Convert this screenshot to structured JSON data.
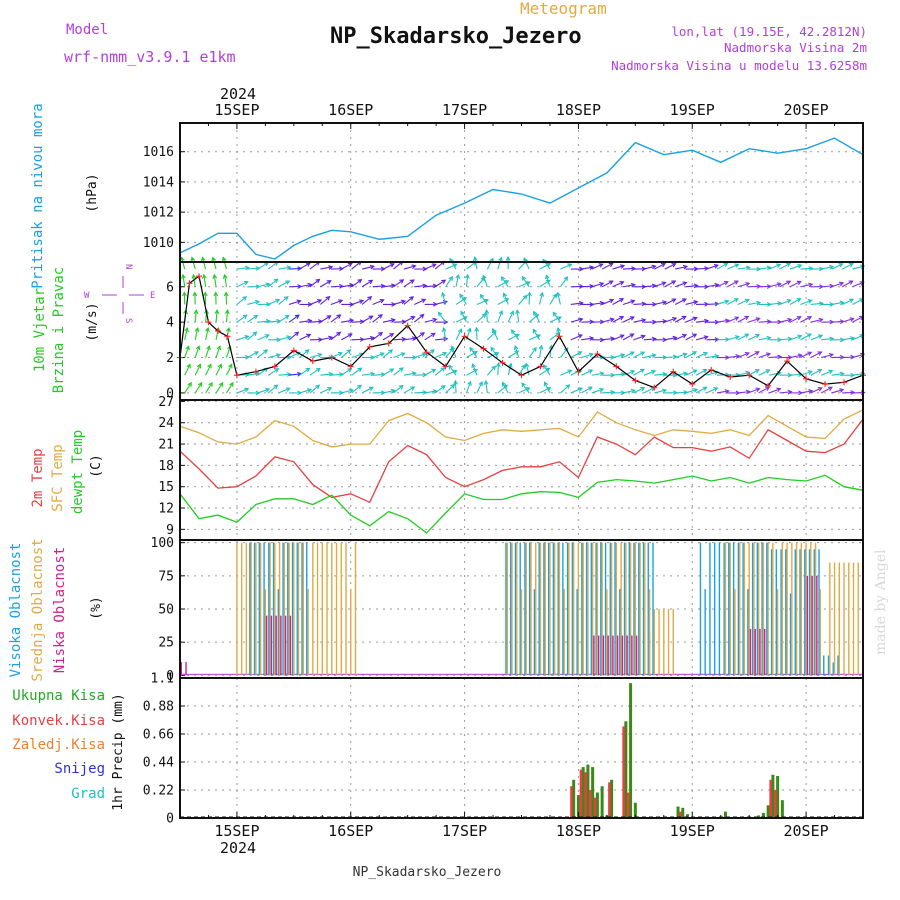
{
  "header": {
    "model_label": "Model",
    "model_value": "wrf-nmm_v3.9.1 e1km",
    "meteogram_label": "Meteogram",
    "station_title": "NP_Skadarsko_Jezero",
    "lonlat": "lon,lat (19.15E, 42.2812N)",
    "height_line1": "Nadmorska Visina 2m",
    "height_line2": "Nadmorska Visina u modelu 13.6258m",
    "footer_station": "NP_Skadarsko_Jezero",
    "credit": "made by Angel",
    "year_top": "2024",
    "year_bottom": "2024"
  },
  "days": [
    "15SEP",
    "16SEP",
    "17SEP",
    "18SEP",
    "19SEP",
    "20SEP"
  ],
  "colors": {
    "pressure": "#1aa0e6",
    "t2m": "#e84040",
    "sfc": "#e0aa44",
    "dewpt": "#22cc22",
    "purple": "#b040d8",
    "high_cloud": "#1aa0e6",
    "mid_cloud": "#e0aa44",
    "low_cloud": "#d02090",
    "total_rain": "#22aa22",
    "conv_rain": "#e84040",
    "frozen": "#f08030",
    "snow": "#3030e0",
    "hail": "#20c0c0",
    "wind_line": "#000000",
    "wind_cross": "#ff2020"
  },
  "panels": {
    "pressure": {
      "label1": "Pritisak na nivou mora",
      "unit": "(hPa)"
    },
    "wind": {
      "label1": "10m Vjetar",
      "label2": "Brzina i Pravac",
      "unit": "(m/s)",
      "compass_n": "N",
      "compass_s": "S",
      "compass_w": "W",
      "compass_e": "E"
    },
    "temp": {
      "label1": "2m Temp",
      "label2": "SFC Temp",
      "label3": "dewpt Temp",
      "unit": "(C)"
    },
    "cloud": {
      "label1": "Visoka Oblacnost",
      "label2": "Srednja Oblacnost",
      "label3": "Niska Oblacnost",
      "unit": "(%)"
    },
    "precip": {
      "unit": "1hr Precip (mm)",
      "legend": [
        "Ukupna Kisa",
        "Konvek.Kisa",
        "Zaledj.Kisa",
        "Snijeg",
        "Grad"
      ]
    }
  },
  "chart_data": [
    {
      "type": "line",
      "panel": "pressure",
      "ylabel": "(hPa)",
      "ylim": [
        1008.7,
        1017.9
      ],
      "yticks": [
        1010,
        1012,
        1014,
        1016
      ],
      "x_unit": "hours from 2024-09-15 00 UTC",
      "xlim": [
        -12,
        132
      ],
      "x": [
        -12,
        -8,
        -4,
        0,
        4,
        8,
        12,
        16,
        20,
        24,
        30,
        36,
        42,
        48,
        54,
        60,
        66,
        72,
        78,
        84,
        90,
        96,
        102,
        108,
        114,
        120,
        126,
        132
      ],
      "values": [
        1009.3,
        1009.9,
        1010.6,
        1010.6,
        1009.2,
        1008.9,
        1009.8,
        1010.4,
        1010.8,
        1010.7,
        1010.2,
        1010.4,
        1011.8,
        1012.6,
        1013.5,
        1013.2,
        1012.6,
        1013.6,
        1014.6,
        1016.6,
        1015.8,
        1016.1,
        1015.3,
        1016.2,
        1015.9,
        1016.2,
        1016.9,
        1015.8
      ]
    },
    {
      "type": "line",
      "panel": "wind",
      "ylabel": "(m/s)",
      "ylim": [
        -0.4,
        7.4
      ],
      "yticks": [
        0,
        2,
        4,
        6
      ],
      "xlim": [
        -12,
        132
      ],
      "x": [
        -12,
        -10,
        -8,
        -6,
        -4,
        -2,
        0,
        4,
        8,
        12,
        16,
        20,
        24,
        28,
        32,
        36,
        40,
        44,
        48,
        52,
        56,
        60,
        64,
        68,
        72,
        76,
        80,
        84,
        88,
        92,
        96,
        100,
        104,
        108,
        112,
        116,
        120,
        124,
        128,
        132
      ],
      "values": [
        2.0,
        6.2,
        6.6,
        4.0,
        3.5,
        3.2,
        1.0,
        1.2,
        1.5,
        2.4,
        1.8,
        2.0,
        1.5,
        2.6,
        2.8,
        3.8,
        2.3,
        1.5,
        3.2,
        2.5,
        1.7,
        1.0,
        1.5,
        3.2,
        1.2,
        2.2,
        1.5,
        0.7,
        0.3,
        1.2,
        0.5,
        1.3,
        0.9,
        1.0,
        0.4,
        1.8,
        0.8,
        0.5,
        0.6,
        1.0
      ]
    },
    {
      "type": "line",
      "panel": "temp",
      "ylabel": "(C)",
      "ylim": [
        7.5,
        27.2
      ],
      "yticks": [
        9,
        12,
        15,
        18,
        21,
        24,
        27
      ],
      "xlim": [
        -12,
        132
      ],
      "x": [
        -12,
        -8,
        -4,
        0,
        4,
        8,
        12,
        16,
        20,
        24,
        28,
        32,
        36,
        40,
        44,
        48,
        52,
        56,
        60,
        64,
        68,
        72,
        76,
        80,
        84,
        88,
        92,
        96,
        100,
        104,
        108,
        112,
        116,
        120,
        124,
        128,
        132
      ],
      "series": [
        {
          "name": "2m Temp",
          "color": "#e84040",
          "values": [
            20.0,
            17.5,
            14.8,
            15.0,
            16.5,
            19.2,
            18.5,
            15.3,
            13.5,
            14.0,
            12.8,
            18.5,
            20.8,
            19.5,
            16.3,
            15.0,
            16.0,
            17.3,
            17.8,
            17.8,
            18.5,
            16.3,
            22.0,
            21.0,
            19.5,
            22.0,
            20.5,
            20.5,
            20.0,
            20.6,
            19.0,
            23.0,
            21.5,
            20.0,
            19.8,
            21.0,
            24.5
          ]
        },
        {
          "name": "SFC Temp",
          "color": "#e0aa44",
          "values": [
            23.5,
            22.6,
            21.3,
            21.0,
            22.0,
            24.3,
            23.5,
            21.5,
            20.6,
            21.0,
            21.0,
            24.3,
            25.3,
            24.0,
            22.0,
            21.5,
            22.5,
            23.0,
            22.8,
            23.0,
            23.2,
            22.0,
            25.5,
            24.0,
            23.0,
            22.2,
            23.0,
            22.8,
            22.5,
            23.0,
            22.2,
            25.0,
            23.5,
            22.0,
            21.8,
            24.5,
            25.8
          ]
        },
        {
          "name": "dewpt Temp",
          "color": "#22cc22",
          "values": [
            14.0,
            10.5,
            11.0,
            10.0,
            12.5,
            13.3,
            13.3,
            12.5,
            13.8,
            11.0,
            9.5,
            11.5,
            10.5,
            8.5,
            11.3,
            14.0,
            13.2,
            13.2,
            14.0,
            14.3,
            14.2,
            13.5,
            15.6,
            16.0,
            15.8,
            15.5,
            16.0,
            16.5,
            15.8,
            16.3,
            15.5,
            16.3,
            16.0,
            15.8,
            16.6,
            15.0,
            14.5
          ]
        }
      ]
    },
    {
      "type": "bar",
      "panel": "cloud",
      "ylabel": "(%)",
      "ylim": [
        0,
        100
      ],
      "yticks": [
        0,
        25,
        50,
        75,
        100
      ],
      "xlim": [
        -12,
        132
      ],
      "series": [
        {
          "name": "Visoka Oblacnost",
          "segments": [
            [
              3,
              15,
              100
            ],
            [
              57,
              88,
              100
            ],
            [
              98,
              104,
              100
            ],
            [
              104,
              112,
              100
            ],
            [
              113,
              123,
              95
            ],
            [
              124,
              127,
              15
            ]
          ]
        },
        {
          "name": "Srednja Oblacnost",
          "segments": [
            [
              0,
              25,
              100
            ],
            [
              57,
              87,
              100
            ],
            [
              87,
              92,
              50
            ],
            [
              103,
              123,
              100
            ],
            [
              125,
              132,
              85
            ]
          ]
        },
        {
          "name": "Niska Oblacnost",
          "segments": [
            [
              -12,
              -11,
              10
            ],
            [
              6,
              11,
              45
            ],
            [
              75,
              84,
              30
            ],
            [
              108,
              111,
              35
            ],
            [
              120,
              122,
              75
            ]
          ]
        }
      ]
    },
    {
      "type": "bar",
      "panel": "precip",
      "ylabel": "1hr Precip (mm)",
      "ylim": [
        0,
        1.1
      ],
      "yticks": [
        0,
        0.22,
        0.44,
        0.66,
        0.88,
        1.1
      ],
      "xlim": [
        -12,
        132
      ],
      "series": [
        {
          "name": "Ukupna Kisa",
          "x": [
            71,
            72,
            73,
            74,
            75,
            76,
            77,
            78,
            79,
            82,
            83,
            84,
            93,
            94,
            95,
            103,
            110,
            111,
            112,
            113,
            114,
            115
          ],
          "values": [
            0.3,
            0.18,
            0.4,
            0.42,
            0.4,
            0.2,
            0.25,
            0.02,
            0.3,
            0.76,
            1.06,
            0.12,
            0.09,
            0.08,
            0.03,
            0.05,
            0.02,
            0.04,
            0.1,
            0.34,
            0.33,
            0.14
          ]
        },
        {
          "name": "Konvek.Kisa",
          "x": [
            71,
            73,
            74,
            75,
            76,
            79,
            82,
            83,
            94,
            113,
            114
          ],
          "values": [
            0.25,
            0.38,
            0.36,
            0.22,
            0.16,
            0.28,
            0.72,
            0.2,
            0.05,
            0.3,
            0.22
          ]
        }
      ]
    }
  ]
}
